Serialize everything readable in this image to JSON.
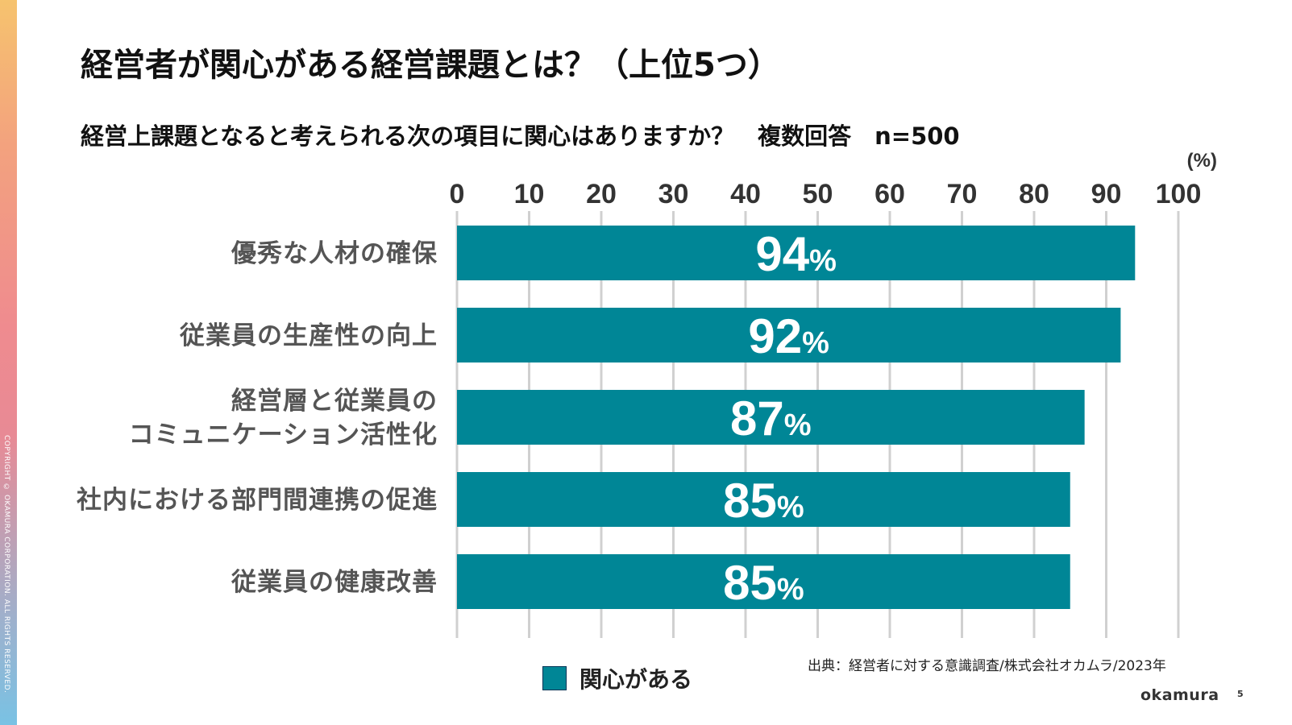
{
  "title": "経営者が関心がある経営課題とは？（上位5つ）",
  "subtitle": "経営上課題となると考えられる次の項目に関心はありますか？　複数回答　n=500",
  "copyright": "COPYRIGHT © OKAMURA CORPORATION. ALL RIGHTS RESERVED.",
  "source": "出典：経営者に対する意識調査/株式会社オカムラ/2023年",
  "logo": "okamura",
  "page_number": "5",
  "colors": {
    "bar": "#008696",
    "grid": "#d0d0d0"
  },
  "chart_data": {
    "type": "bar",
    "orientation": "horizontal",
    "unit_label": "(%)",
    "categories": [
      [
        "優秀な人材の確保"
      ],
      [
        "従業員の生産性の向上"
      ],
      [
        "経営層と従業員の",
        "コミュニケーション活性化"
      ],
      [
        "社内における部門間連携の促進"
      ],
      [
        "従業員の健康改善"
      ]
    ],
    "series": [
      {
        "name": "関心がある",
        "values": [
          94,
          92,
          87,
          85,
          85
        ]
      }
    ],
    "data_labels": [
      "94%",
      "92%",
      "87%",
      "85%",
      "85%"
    ],
    "xlim": [
      0,
      100
    ],
    "xticks": [
      0,
      10,
      20,
      30,
      40,
      50,
      60,
      70,
      80,
      90,
      100
    ],
    "grid": true,
    "legend_position": "bottom"
  }
}
